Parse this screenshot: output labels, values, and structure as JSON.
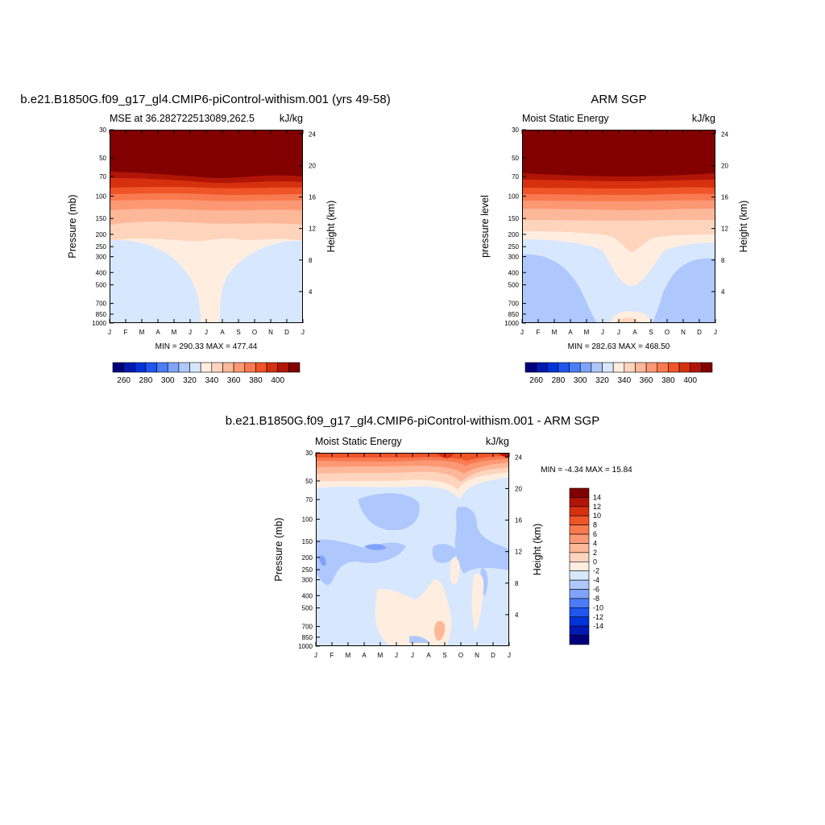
{
  "palette": [
    "#00007f",
    "#001ab2",
    "#0033d9",
    "#1f56f0",
    "#4a7df7",
    "#7fa3fb",
    "#aec7fd",
    "#d7e8fe",
    "#ffeee0",
    "#fed4bd",
    "#fdb799",
    "#fc9873",
    "#f97a4f",
    "#ef5529",
    "#d7300f",
    "#b11507",
    "#820000"
  ],
  "months": [
    "J",
    "F",
    "M",
    "A",
    "M",
    "J",
    "J",
    "A",
    "S",
    "O",
    "N",
    "D",
    "J"
  ],
  "pressure_ticks": [
    "30",
    "50",
    "70",
    "100",
    "150",
    "200",
    "250",
    "300",
    "400",
    "500",
    "700",
    "850",
    "1000"
  ],
  "panels": [
    {
      "id": "model",
      "title": "b.e21.B1850G.f09_g17_gl4.CMIP6-piControl-withism.001 (yrs 49-58)",
      "left_label": "MSE at 36.282722513089,262.5",
      "units": "kJ/kg",
      "ylabel": "Pressure (mb)",
      "ylabel_right": "Height (km)",
      "height_ticks": [
        "4",
        "8",
        "12",
        "16",
        "20",
        "24"
      ],
      "minmax": "MIN = 290.33 MAX = 477.44",
      "colorbar_ticks": [
        "260",
        "280",
        "300",
        "320",
        "340",
        "360",
        "380",
        "400"
      ]
    },
    {
      "id": "obs",
      "title": "ARM SGP",
      "left_label": "Moist Static Energy",
      "units": "kJ/kg",
      "ylabel": "pressure level",
      "ylabel_right": "Height (km)",
      "height_ticks": [
        "4",
        "8",
        "12",
        "16",
        "20",
        "24"
      ],
      "minmax": "MIN = 282.63 MAX = 468.50",
      "colorbar_ticks": [
        "260",
        "280",
        "300",
        "320",
        "340",
        "360",
        "380",
        "400"
      ]
    },
    {
      "id": "diff",
      "title": "b.e21.B1850G.f09_g17_gl4.CMIP6-piControl-withism.001 - ARM SGP",
      "left_label": "Moist Static Energy",
      "units": "kJ/kg",
      "ylabel": "Pressure (mb)",
      "ylabel_right": "Height (km)",
      "height_ticks": [
        "4",
        "8",
        "12",
        "16",
        "20",
        "24"
      ],
      "minmax": "MIN =  -4.34 MAX =  15.84",
      "colorbar_ticks": [
        "14",
        "12",
        "10",
        "8",
        "6",
        "4",
        "2",
        "0",
        "-2",
        "-4",
        "-6",
        "-8",
        "-10",
        "-12",
        "-14"
      ]
    }
  ],
  "chart_data": [
    {
      "type": "heatmap",
      "title": "b.e21.B1850G.f09_g17_gl4.CMIP6-piControl-withism.001 (yrs 49-58)",
      "subtitle": "MSE at 36.282722513089,262.5",
      "units": "kJ/kg",
      "xlabel": "",
      "ylabel": "Pressure (mb)",
      "ylabel_right": "Height (km)",
      "x": [
        "J",
        "F",
        "M",
        "A",
        "M",
        "J",
        "J",
        "A",
        "S",
        "O",
        "N",
        "D",
        "J"
      ],
      "y_pressure": [
        30,
        50,
        70,
        100,
        150,
        200,
        250,
        300,
        400,
        500,
        700,
        850,
        1000
      ],
      "levels": [
        260,
        270,
        280,
        290,
        300,
        310,
        320,
        330,
        340,
        350,
        360,
        370,
        380,
        390,
        400,
        410
      ],
      "min": 290.33,
      "max": 477.44
    },
    {
      "type": "heatmap",
      "title": "ARM SGP",
      "subtitle": "Moist Static Energy",
      "units": "kJ/kg",
      "xlabel": "",
      "ylabel": "pressure level",
      "ylabel_right": "Height (km)",
      "x": [
        "J",
        "F",
        "M",
        "A",
        "M",
        "J",
        "J",
        "A",
        "S",
        "O",
        "N",
        "D",
        "J"
      ],
      "y_pressure": [
        30,
        50,
        70,
        100,
        150,
        200,
        250,
        300,
        400,
        500,
        700,
        850,
        1000
      ],
      "levels": [
        260,
        270,
        280,
        290,
        300,
        310,
        320,
        330,
        340,
        350,
        360,
        370,
        380,
        390,
        400,
        410
      ],
      "min": 282.63,
      "max": 468.5
    },
    {
      "type": "heatmap",
      "title": "b.e21.B1850G.f09_g17_gl4.CMIP6-piControl-withism.001 - ARM SGP",
      "subtitle": "Moist Static Energy",
      "units": "kJ/kg",
      "xlabel": "",
      "ylabel": "Pressure (mb)",
      "ylabel_right": "Height (km)",
      "x": [
        "J",
        "F",
        "M",
        "A",
        "M",
        "J",
        "J",
        "A",
        "S",
        "O",
        "N",
        "D",
        "J"
      ],
      "y_pressure": [
        30,
        50,
        70,
        100,
        150,
        200,
        250,
        300,
        400,
        500,
        700,
        850,
        1000
      ],
      "levels": [
        -14,
        -12,
        -10,
        -8,
        -6,
        -4,
        -2,
        0,
        2,
        4,
        6,
        8,
        10,
        12,
        14
      ],
      "min": -4.34,
      "max": 15.84
    }
  ]
}
